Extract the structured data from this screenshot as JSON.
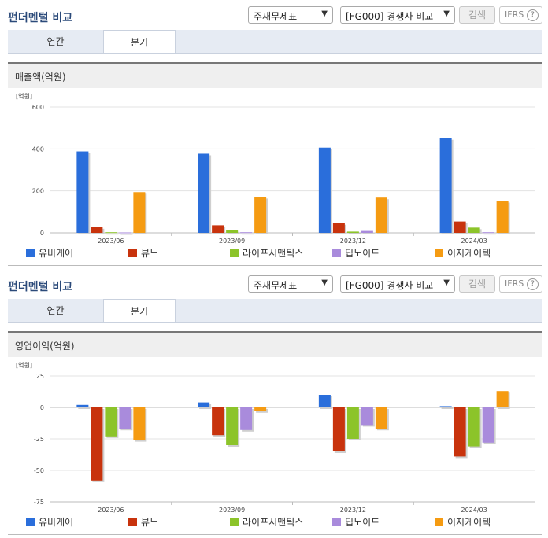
{
  "panels": [
    {
      "title": "펀더멘털 비교",
      "select_statement": "주재무제표",
      "select_compare": "[FG000] 경쟁사 비교",
      "search_label": "검색",
      "ifrs_label": "IFRS",
      "help_label": "?",
      "tabs": [
        "연간",
        "분기"
      ],
      "active_tab": 1,
      "chart_title": "매출액(억원)"
    },
    {
      "title": "펀더멘털 비교",
      "select_statement": "주재무제표",
      "select_compare": "[FG000] 경쟁사 비교",
      "search_label": "검색",
      "ifrs_label": "IFRS",
      "help_label": "?",
      "tabs": [
        "연간",
        "분기"
      ],
      "active_tab": 1,
      "chart_title": "영업이익(억원)"
    }
  ],
  "chart_data": [
    {
      "type": "bar",
      "unit_label": "[억원]",
      "categories": [
        "2023/06",
        "2023/09",
        "2023/12",
        "2024/03"
      ],
      "ylim": [
        0,
        600
      ],
      "yticks": [
        0,
        200,
        400,
        600
      ],
      "grid": true,
      "legend_position": "bottom",
      "series": [
        {
          "name": "유비케어",
          "color": "#2a6edb",
          "values": [
            388,
            377,
            406,
            451
          ]
        },
        {
          "name": "뷰노",
          "color": "#c8330d",
          "values": [
            27,
            36,
            46,
            54
          ]
        },
        {
          "name": "라이프시맨틱스",
          "color": "#8cc42a",
          "values": [
            3,
            12,
            6,
            25
          ]
        },
        {
          "name": "딥노이드",
          "color": "#a98bdc",
          "values": [
            2,
            3,
            9,
            3
          ]
        },
        {
          "name": "이지케어텍",
          "color": "#f59b12",
          "values": [
            194,
            171,
            168,
            152
          ]
        }
      ]
    },
    {
      "type": "bar",
      "unit_label": "[억원]",
      "categories": [
        "2023/06",
        "2023/09",
        "2023/12",
        "2024/03"
      ],
      "ylim": [
        -75,
        25
      ],
      "yticks": [
        -75,
        -50,
        -25,
        0,
        25
      ],
      "grid": true,
      "legend_position": "bottom",
      "series": [
        {
          "name": "유비케어",
          "color": "#2a6edb",
          "values": [
            2,
            4,
            10,
            1
          ]
        },
        {
          "name": "뷰노",
          "color": "#c8330d",
          "values": [
            -58,
            -22,
            -35,
            -39
          ]
        },
        {
          "name": "라이프시맨틱스",
          "color": "#8cc42a",
          "values": [
            -23,
            -30,
            -25,
            -31
          ]
        },
        {
          "name": "딥노이드",
          "color": "#a98bdc",
          "values": [
            -17,
            -18,
            -14,
            -28
          ]
        },
        {
          "name": "이지케어텍",
          "color": "#f59b12",
          "values": [
            -26,
            -3,
            -17,
            13
          ]
        }
      ]
    }
  ]
}
